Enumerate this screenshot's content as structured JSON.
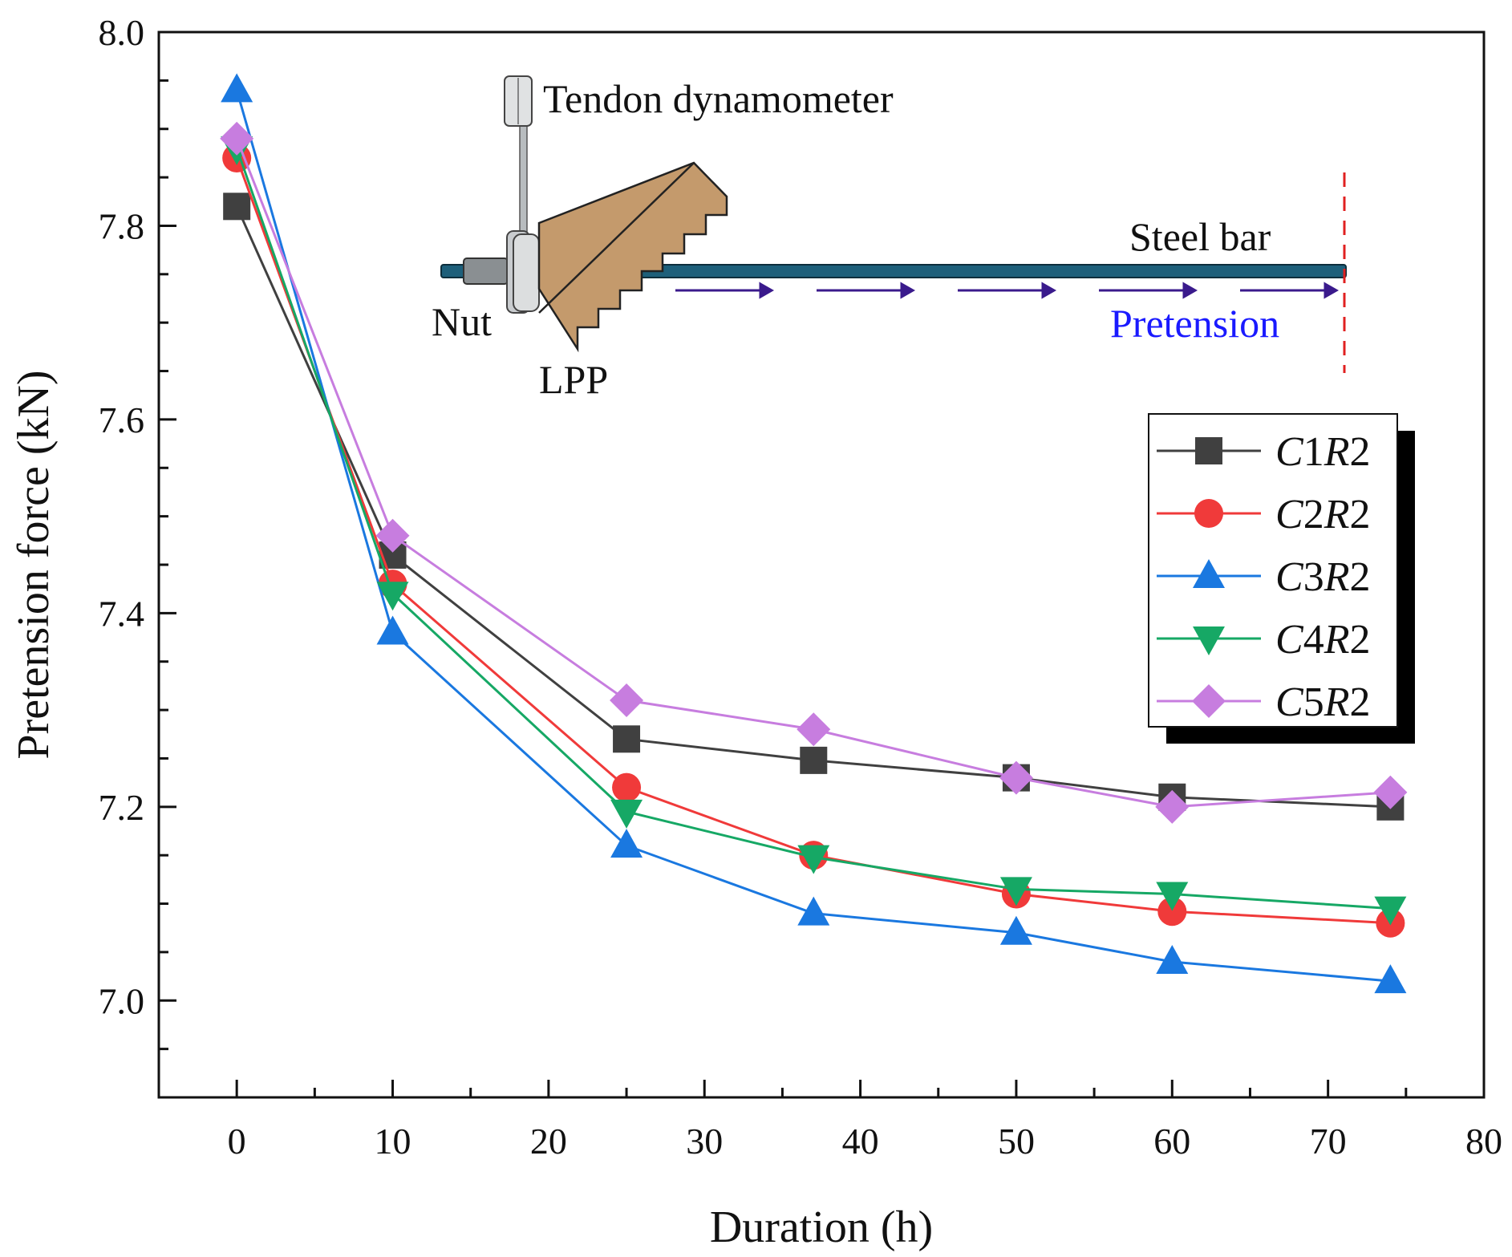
{
  "chart_data": {
    "type": "line",
    "title": "",
    "xlabel": "Duration (h)",
    "ylabel": "Pretension force (kN)",
    "xlim": [
      -5,
      80
    ],
    "ylim": [
      6.9,
      8.0
    ],
    "xticks": [
      0,
      10,
      20,
      30,
      40,
      50,
      60,
      70,
      80
    ],
    "yticks": [
      7.0,
      7.2,
      7.4,
      7.6,
      7.8,
      8.0
    ],
    "x": [
      0,
      10,
      25,
      37,
      50,
      60,
      74
    ],
    "series": [
      {
        "name": "C1R2",
        "label_c": "C",
        "label_n1": "1",
        "label_r": "R",
        "label_n2": "2",
        "color": "#404040",
        "marker": "square",
        "values": [
          7.82,
          7.46,
          7.27,
          7.248,
          7.23,
          7.21,
          7.2
        ]
      },
      {
        "name": "C2R2",
        "label_c": "C",
        "label_n1": "2",
        "label_r": "R",
        "label_n2": "2",
        "color": "#f03a3a",
        "marker": "circle",
        "values": [
          7.87,
          7.43,
          7.22,
          7.15,
          7.11,
          7.092,
          7.08
        ]
      },
      {
        "name": "C3R2",
        "label_c": "C",
        "label_n1": "3",
        "label_r": "R",
        "label_n2": "2",
        "color": "#1a78e0",
        "marker": "triangle-up",
        "values": [
          7.94,
          7.38,
          7.16,
          7.09,
          7.07,
          7.04,
          7.02
        ]
      },
      {
        "name": "C4R2",
        "label_c": "C",
        "label_n1": "4",
        "label_r": "R",
        "label_n2": "2",
        "color": "#16a865",
        "marker": "triangle-down",
        "values": [
          7.88,
          7.42,
          7.195,
          7.148,
          7.115,
          7.11,
          7.095
        ]
      },
      {
        "name": "C5R2",
        "label_c": "C",
        "label_n1": "5",
        "label_r": "R",
        "label_n2": "2",
        "color": "#c77ddf",
        "marker": "diamond",
        "values": [
          7.89,
          7.48,
          7.31,
          7.28,
          7.23,
          7.2,
          7.215
        ]
      }
    ],
    "legend_position": "right",
    "annotations": {
      "dynamometer": "Tendon dynamometer",
      "nut": "Nut",
      "lpp": "LPP",
      "steel_bar": "Steel bar",
      "pretension": "Pretension"
    },
    "colors": {
      "bar": "#1d5f7a",
      "plate": "#c49a6c",
      "arrow": "#3a1a8c",
      "pretension_text": "#1a1aff",
      "cut_line": "#e02020"
    }
  }
}
